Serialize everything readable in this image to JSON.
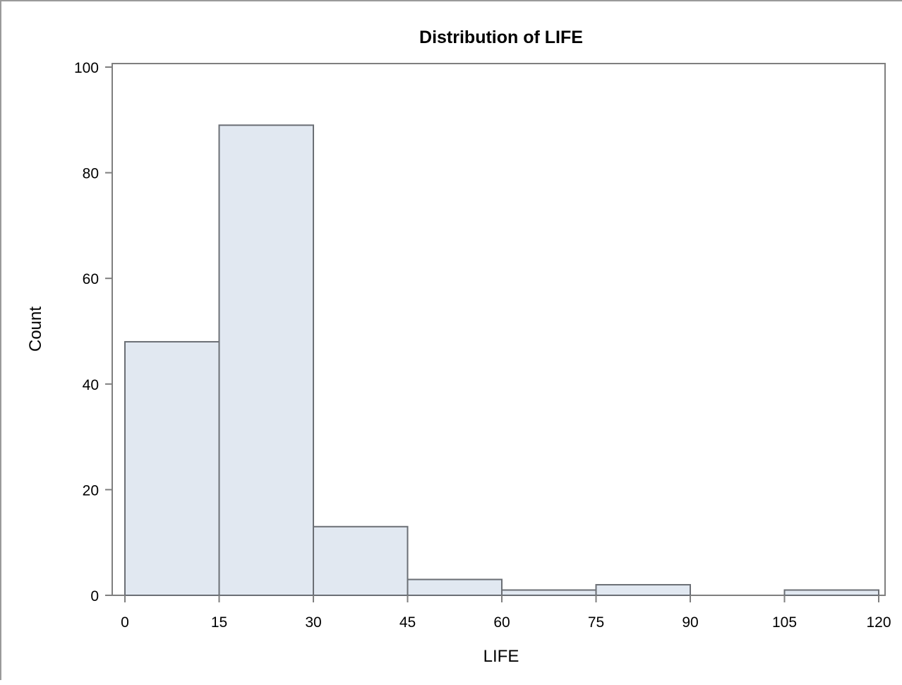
{
  "chart_data": {
    "type": "histogram",
    "title": "Distribution of LIFE",
    "xlabel": "LIFE",
    "ylabel": "Count",
    "xlim": [
      0,
      120
    ],
    "ylim": [
      0,
      100
    ],
    "x_ticks": [
      0,
      15,
      30,
      45,
      60,
      75,
      90,
      105,
      120
    ],
    "y_ticks": [
      0,
      20,
      40,
      60,
      80,
      100
    ],
    "bins": [
      {
        "x0": 0,
        "x1": 15,
        "count": 48
      },
      {
        "x0": 15,
        "x1": 30,
        "count": 89
      },
      {
        "x0": 30,
        "x1": 45,
        "count": 13
      },
      {
        "x0": 45,
        "x1": 60,
        "count": 3
      },
      {
        "x0": 60,
        "x1": 75,
        "count": 1
      },
      {
        "x0": 75,
        "x1": 90,
        "count": 2
      },
      {
        "x0": 90,
        "x1": 105,
        "count": 0
      },
      {
        "x0": 105,
        "x1": 120,
        "count": 1
      }
    ],
    "grid": false,
    "legend": "none",
    "colors": {
      "bar_fill": "#e1e8f1",
      "bar_stroke": "#6b6f75",
      "axis": "#7f7f7f",
      "text": "#000000"
    }
  }
}
